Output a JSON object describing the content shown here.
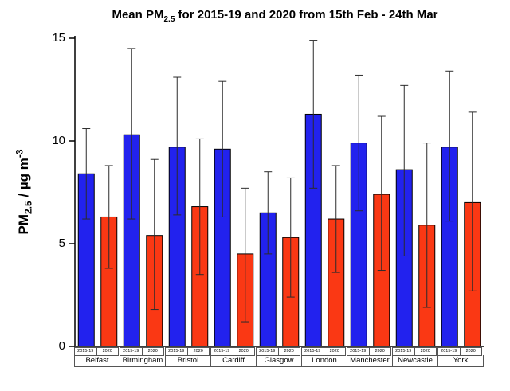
{
  "title": {
    "prefix": "Mean PM",
    "sub": "2.5",
    "suffix": " for 2015-19 and 2020 from 15th Feb - 24th Mar"
  },
  "y_axis": {
    "label_prefix": "PM",
    "label_sub": "2.5",
    "label_mid": " / µg m",
    "label_sup": "-3",
    "ticks": [
      0,
      5,
      10,
      15
    ]
  },
  "colors": {
    "series_2015_19": "#2222ee",
    "series_2020": "#fa3814",
    "axis": "#000000",
    "error_bar": "#2b2b2b",
    "table_border": "#555555"
  },
  "chart_data": {
    "type": "bar",
    "title": "Mean PM2.5 for 2015-19 and 2020 from 15th Feb - 24th Mar",
    "xlabel": "",
    "ylabel": "PM2.5 / ug m-3",
    "ylim": [
      0,
      15
    ],
    "grid": false,
    "legend_position": "none",
    "categories": [
      "Belfast",
      "Birmingham",
      "Bristol",
      "Cardiff",
      "Glasgow",
      "London",
      "Manchester",
      "Newcastle",
      "York"
    ],
    "series": [
      {
        "name": "2015-19",
        "color": "#2222ee",
        "values": [
          8.4,
          10.3,
          9.7,
          9.6,
          6.5,
          11.3,
          9.9,
          8.6,
          9.7
        ],
        "error_low": [
          6.2,
          6.2,
          6.4,
          6.3,
          4.5,
          7.7,
          6.6,
          4.4,
          6.1
        ],
        "error_high": [
          10.6,
          14.5,
          13.1,
          12.9,
          8.5,
          14.9,
          13.2,
          12.7,
          13.4
        ]
      },
      {
        "name": "2020",
        "color": "#fa3814",
        "values": [
          6.3,
          5.4,
          6.8,
          4.5,
          5.3,
          6.2,
          7.4,
          5.9,
          7.0
        ],
        "error_low": [
          3.8,
          1.8,
          3.5,
          1.2,
          2.4,
          3.6,
          3.7,
          1.9,
          2.7
        ],
        "error_high": [
          8.8,
          9.1,
          10.1,
          7.7,
          8.2,
          8.8,
          11.2,
          9.9,
          11.4
        ]
      }
    ]
  }
}
